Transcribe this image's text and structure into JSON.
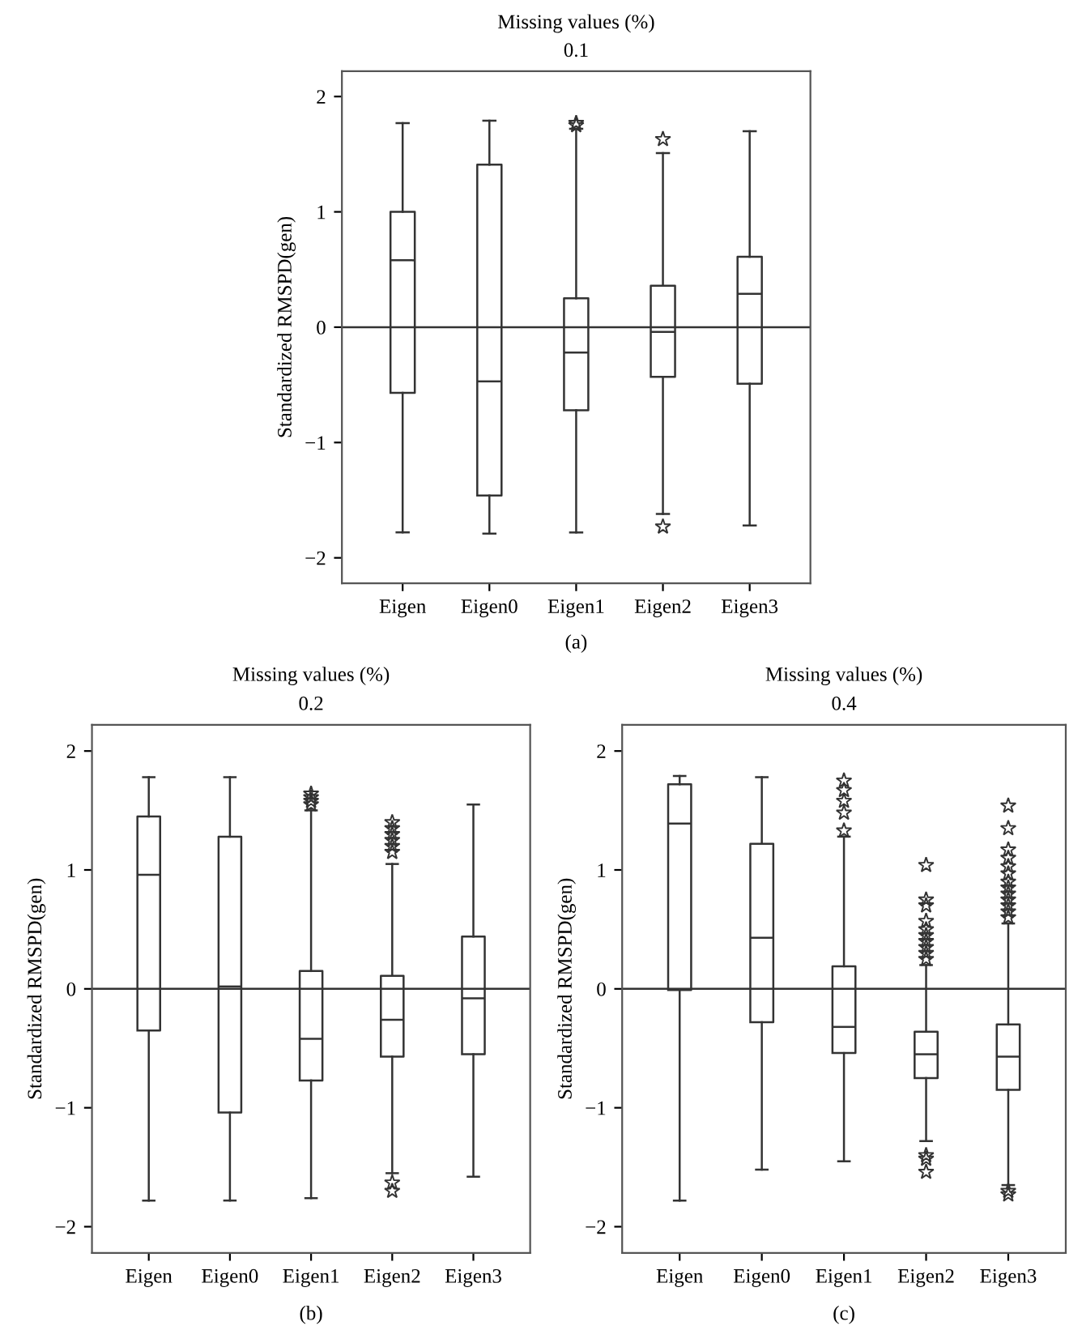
{
  "chart_data": [
    {
      "type": "box",
      "title": "Missing values (%)",
      "subtitle": "0.1",
      "ylabel": "Standardized RMSPD(gen)",
      "annotations": [
        "(a)"
      ],
      "categories": [
        "Eigen",
        "Eigen0",
        "Eigen1",
        "Eigen2",
        "Eigen3"
      ],
      "ylim": [
        -2.22,
        2.22
      ],
      "yticks": [
        -2,
        -1,
        0,
        1,
        2
      ],
      "grid": false,
      "marker": "star",
      "color": "#333333",
      "ref_lines": [
        {
          "axis": "y",
          "value": 0,
          "color": "#333333"
        }
      ],
      "boxes": [
        {
          "low": -1.78,
          "q1": -0.57,
          "median": 0.58,
          "q3": 1.0,
          "high": 1.77
        },
        {
          "low": -1.79,
          "q1": -1.46,
          "median": -0.47,
          "q3": 1.41,
          "high": 1.79
        },
        {
          "low": -1.78,
          "q1": -0.72,
          "median": -0.22,
          "q3": 0.25,
          "high": 1.72,
          "outliers": [
            1.75,
            1.77
          ]
        },
        {
          "low": -1.62,
          "q1": -0.43,
          "median": -0.04,
          "q3": 0.36,
          "high": 1.51,
          "outliers": [
            1.63,
            -1.73
          ]
        },
        {
          "low": -1.72,
          "q1": -0.49,
          "median": 0.29,
          "q3": 0.61,
          "high": 1.7
        }
      ]
    },
    {
      "type": "box",
      "title": "Missing values (%)",
      "subtitle": "0.2",
      "ylabel": "Standardized RMSPD(gen)",
      "annotations": [
        "(b)"
      ],
      "categories": [
        "Eigen",
        "Eigen0",
        "Eigen1",
        "Eigen2",
        "Eigen3"
      ],
      "ylim": [
        -2.22,
        2.22
      ],
      "yticks": [
        -2,
        -1,
        0,
        1,
        2
      ],
      "grid": false,
      "marker": "star",
      "color": "#333333",
      "ref_lines": [
        {
          "axis": "y",
          "value": 0,
          "color": "#333333"
        }
      ],
      "boxes": [
        {
          "low": -1.78,
          "q1": -0.35,
          "median": 0.96,
          "q3": 1.45,
          "high": 1.78
        },
        {
          "low": -1.78,
          "q1": -1.04,
          "median": 0.02,
          "q3": 1.28,
          "high": 1.78
        },
        {
          "low": -1.76,
          "q1": -0.77,
          "median": -0.42,
          "q3": 0.15,
          "high": 1.5,
          "outliers": [
            1.55,
            1.58,
            1.61,
            1.64
          ]
        },
        {
          "low": -1.55,
          "q1": -0.57,
          "median": -0.26,
          "q3": 0.11,
          "high": 1.05,
          "outliers": [
            1.15,
            1.2,
            1.25,
            1.3,
            1.35,
            1.4,
            -1.63,
            -1.7
          ]
        },
        {
          "low": -1.58,
          "q1": -0.55,
          "median": -0.08,
          "q3": 0.44,
          "high": 1.55
        }
      ]
    },
    {
      "type": "box",
      "title": "Missing values (%)",
      "subtitle": "0.4",
      "ylabel": "Standardized RMSPD(gen)",
      "annotations": [
        "(c)"
      ],
      "categories": [
        "Eigen",
        "Eigen0",
        "Eigen1",
        "Eigen2",
        "Eigen3"
      ],
      "ylim": [
        -2.22,
        2.22
      ],
      "yticks": [
        -2,
        -1,
        0,
        1,
        2
      ],
      "grid": false,
      "marker": "star",
      "color": "#333333",
      "ref_lines": [
        {
          "axis": "y",
          "value": 0,
          "color": "#333333"
        }
      ],
      "boxes": [
        {
          "low": -1.78,
          "q1": -0.01,
          "median": 1.39,
          "q3": 1.72,
          "high": 1.79
        },
        {
          "low": -1.52,
          "q1": -0.28,
          "median": 0.43,
          "q3": 1.22,
          "high": 1.78
        },
        {
          "low": -1.45,
          "q1": -0.54,
          "median": -0.32,
          "q3": 0.19,
          "high": 1.28,
          "outliers": [
            1.33,
            1.48,
            1.58,
            1.67,
            1.75
          ]
        },
        {
          "low": -1.28,
          "q1": -0.75,
          "median": -0.55,
          "q3": -0.36,
          "high": 0.2,
          "outliers": [
            0.25,
            0.3,
            0.35,
            0.4,
            0.45,
            0.5,
            0.57,
            0.7,
            0.75,
            1.04,
            -1.4,
            -1.43,
            -1.54
          ]
        },
        {
          "low": -1.65,
          "q1": -0.85,
          "median": -0.57,
          "q3": -0.3,
          "high": 0.55,
          "outliers": [
            0.6,
            0.65,
            0.7,
            0.75,
            0.8,
            0.85,
            0.9,
            0.97,
            1.03,
            1.1,
            1.17,
            1.35,
            1.54,
            -1.7,
            -1.73
          ]
        }
      ]
    }
  ]
}
